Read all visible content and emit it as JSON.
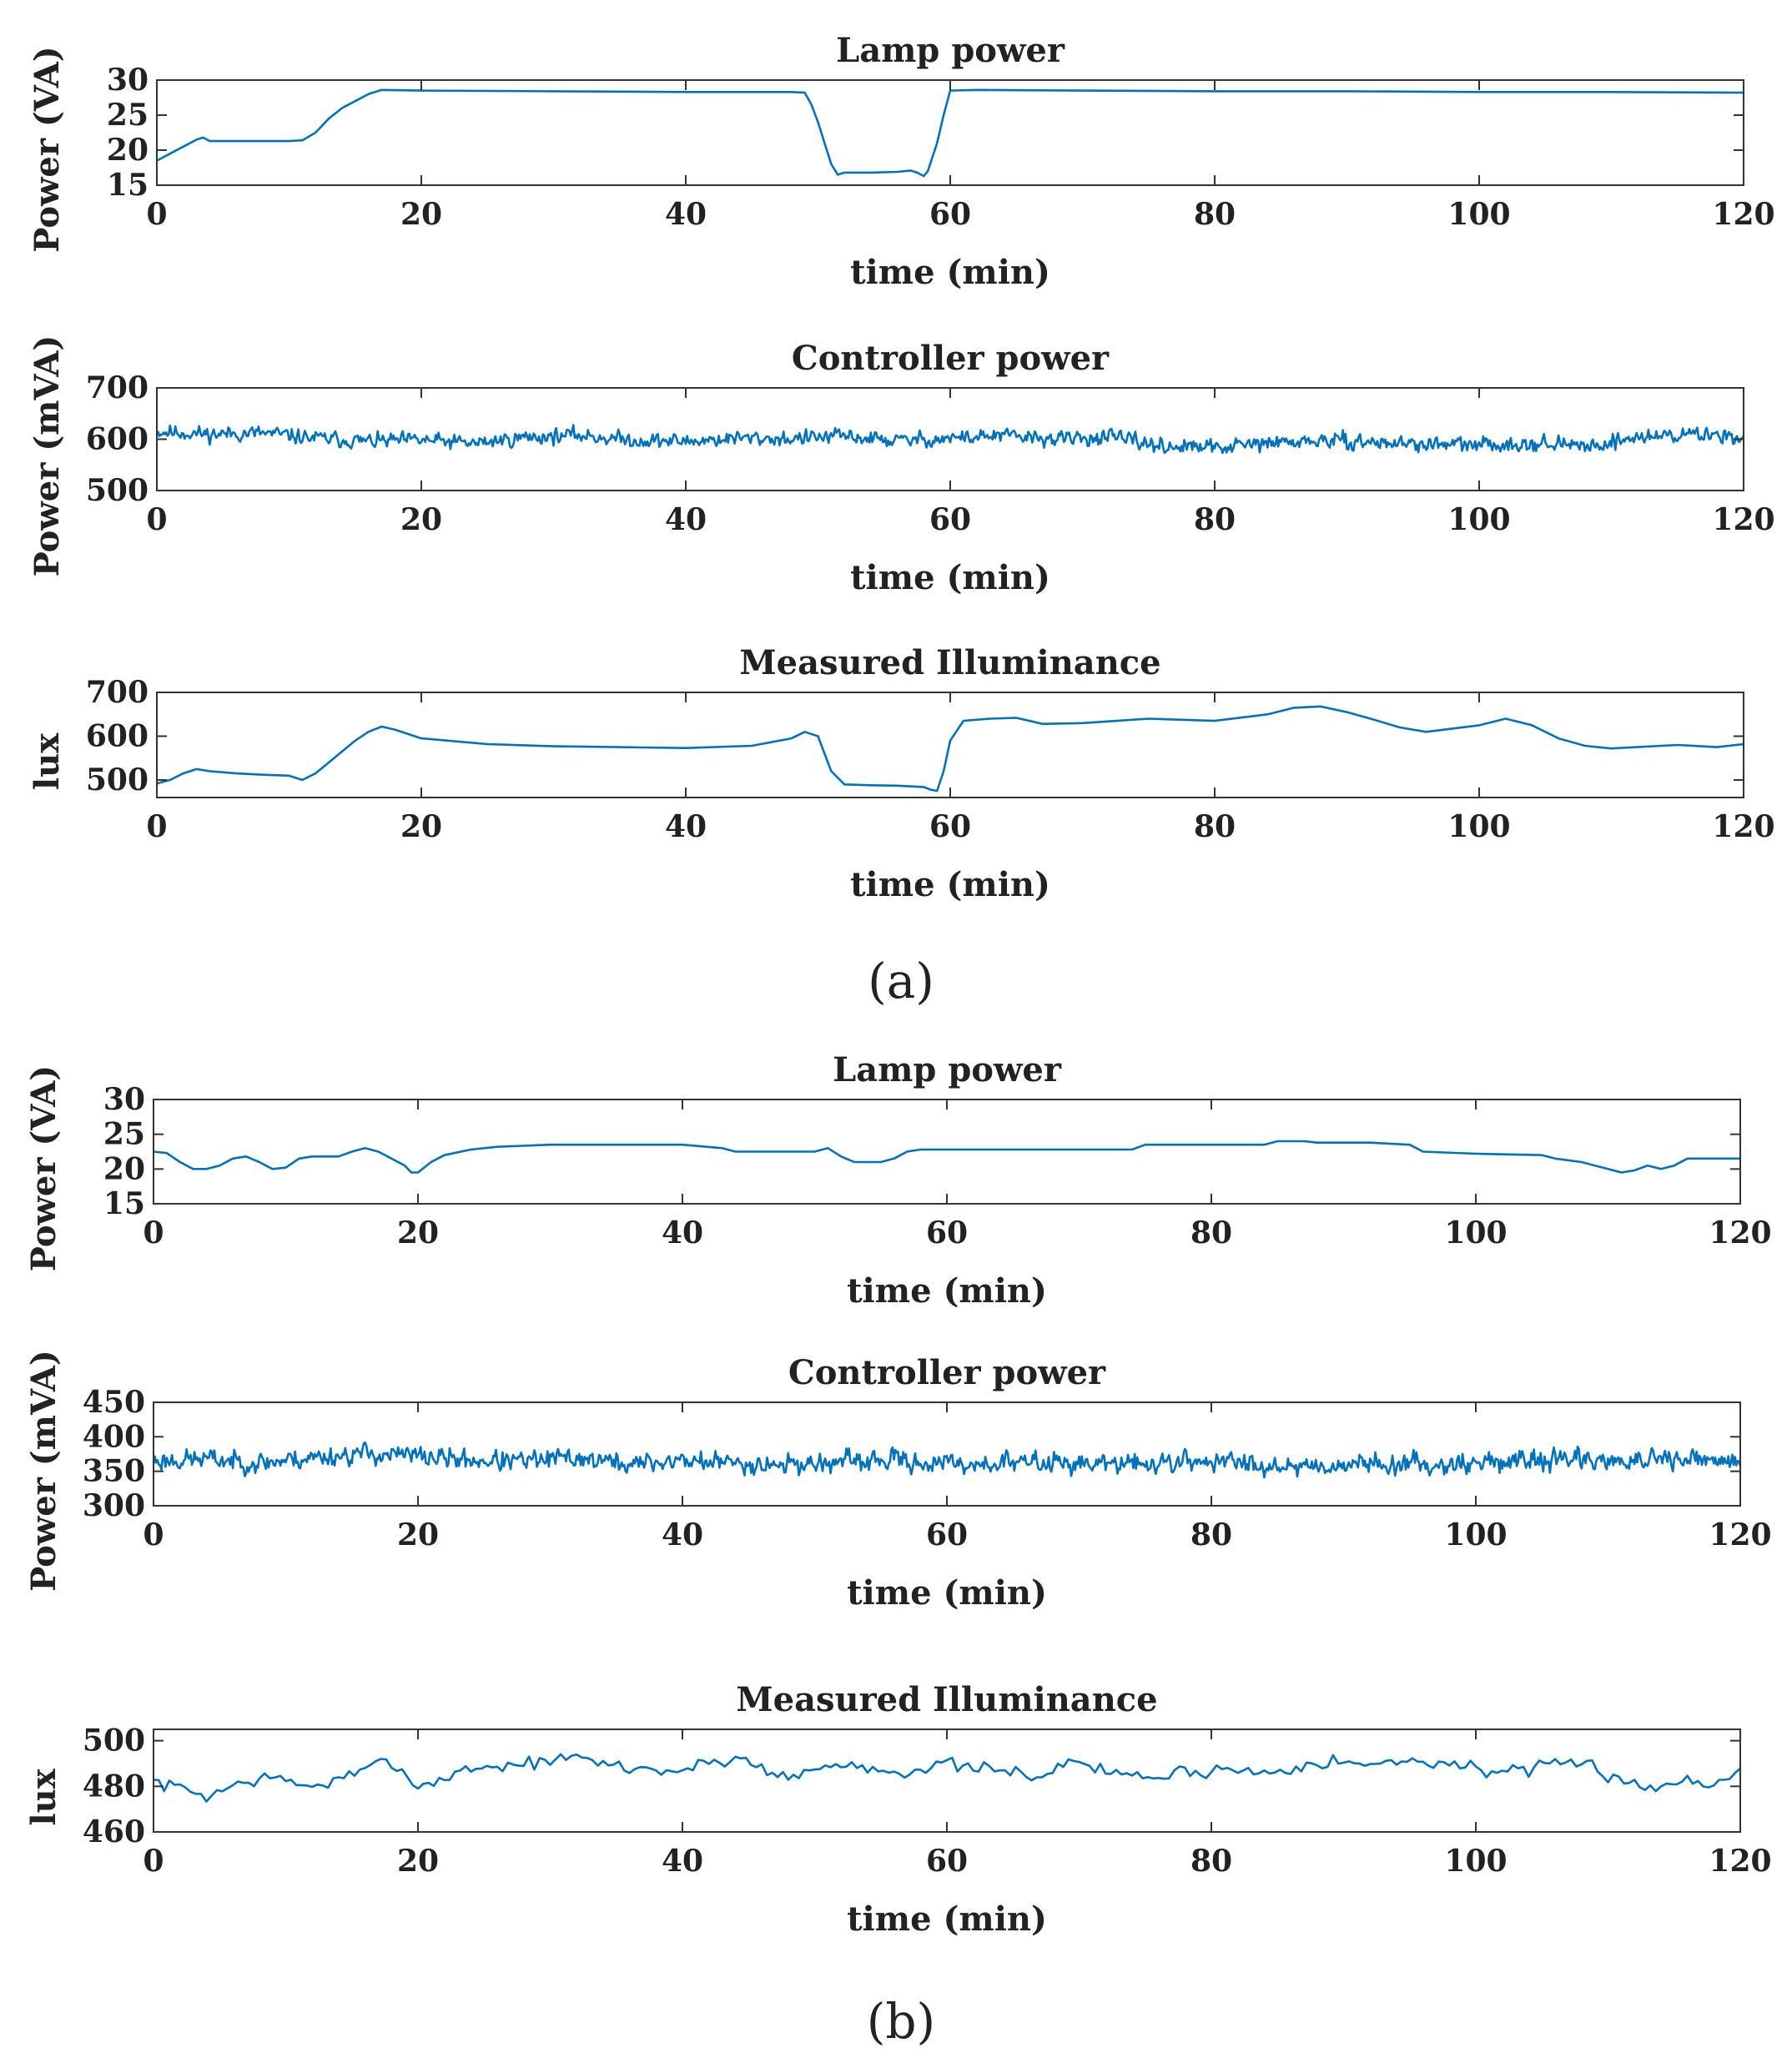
{
  "figure": {
    "panel_labels": [
      "(a)",
      "(b)"
    ],
    "line_color": "#0072BD"
  },
  "chart_data": [
    {
      "id": "a-lamp",
      "type": "line",
      "title": "Lamp power",
      "xlabel": "time (min)",
      "ylabel": "Power (VA)",
      "xlim": [
        0,
        120
      ],
      "ylim": [
        15,
        30
      ],
      "xticks": [
        0,
        20,
        40,
        60,
        80,
        100,
        120
      ],
      "yticks": [
        15,
        20,
        25,
        30
      ],
      "series": [
        {
          "name": "Lamp power",
          "x": [
            0,
            1,
            2,
            3,
            3.5,
            4,
            6,
            8,
            10,
            11,
            12,
            13,
            14,
            15,
            16,
            17,
            20,
            30,
            40,
            45,
            48,
            49,
            49.5,
            50,
            50.5,
            51,
            51.5,
            52,
            54,
            56,
            57,
            57.5,
            58,
            58.3,
            59,
            59.5,
            60,
            62,
            70,
            80,
            90,
            100,
            110,
            120
          ],
          "y": [
            18.5,
            19.5,
            20.5,
            21.5,
            21.8,
            21.3,
            21.3,
            21.3,
            21.3,
            21.4,
            22.5,
            24.5,
            26,
            27,
            28,
            28.6,
            28.5,
            28.4,
            28.3,
            28.3,
            28.3,
            28.2,
            26.5,
            24,
            21,
            18,
            16.5,
            16.8,
            16.8,
            16.9,
            17.1,
            16.8,
            16.3,
            17,
            21,
            25,
            28.5,
            28.6,
            28.5,
            28.4,
            28.4,
            28.3,
            28.3,
            28.2
          ]
        }
      ]
    },
    {
      "id": "a-controller",
      "type": "line",
      "title": "Controller power",
      "xlabel": "time (min)",
      "ylabel": "Power (mVA)",
      "xlim": [
        0,
        120
      ],
      "ylim": [
        500,
        700
      ],
      "xticks": [
        0,
        20,
        40,
        60,
        80,
        100,
        120
      ],
      "yticks": [
        500,
        600,
        700
      ],
      "series": [
        {
          "name": "Controller power",
          "x": [
            0,
            4,
            8,
            12,
            16,
            20,
            24,
            28,
            32,
            36,
            40,
            44,
            48,
            52,
            56,
            60,
            64,
            68,
            72,
            76,
            80,
            84,
            88,
            92,
            96,
            100,
            104,
            108,
            112,
            116,
            120
          ],
          "y": [
            615,
            610,
            612,
            602,
            596,
            598,
            592,
            604,
            608,
            598,
            596,
            602,
            601,
            606,
            597,
            602,
            607,
            600,
            604,
            587,
            583,
            592,
            597,
            594,
            590,
            588,
            593,
            586,
            604,
            610,
            606
          ],
          "noise_amplitude": 30,
          "samples": 1200,
          "seed": 11
        }
      ]
    },
    {
      "id": "a-illuminance",
      "type": "line",
      "title": "Measured Illuminance",
      "xlabel": "time (min)",
      "ylabel": "lux",
      "xlim": [
        0,
        120
      ],
      "ylim": [
        460,
        700
      ],
      "xticks": [
        0,
        20,
        40,
        60,
        80,
        100,
        120
      ],
      "yticks": [
        500,
        600,
        700
      ],
      "series": [
        {
          "name": "Measured Illuminance",
          "x": [
            0,
            1,
            2,
            3,
            4,
            6,
            8,
            10,
            11,
            12,
            13,
            14,
            15,
            16,
            17,
            18,
            20,
            25,
            30,
            35,
            40,
            45,
            48,
            49,
            50,
            50.5,
            51,
            52,
            54,
            56,
            58,
            58.5,
            59,
            59.5,
            60,
            61,
            63,
            65,
            67,
            70,
            75,
            80,
            84,
            86,
            88,
            90,
            92,
            94,
            96,
            100,
            102,
            104,
            106,
            108,
            110,
            115,
            118,
            120
          ],
          "y": [
            492,
            500,
            515,
            525,
            520,
            515,
            512,
            510,
            500,
            515,
            540,
            565,
            590,
            610,
            622,
            615,
            595,
            582,
            577,
            575,
            573,
            578,
            595,
            610,
            600,
            560,
            520,
            490,
            488,
            487,
            484,
            478,
            475,
            520,
            590,
            635,
            640,
            642,
            628,
            630,
            640,
            635,
            650,
            665,
            668,
            655,
            638,
            620,
            610,
            625,
            640,
            625,
            595,
            578,
            572,
            580,
            575,
            582
          ]
        }
      ]
    },
    {
      "id": "b-lamp",
      "type": "line",
      "title": "Lamp power",
      "xlabel": "time (min)",
      "ylabel": "Power (VA)",
      "xlim": [
        0,
        120
      ],
      "ylim": [
        15,
        30
      ],
      "xticks": [
        0,
        20,
        40,
        60,
        80,
        100,
        120
      ],
      "yticks": [
        15,
        20,
        25,
        30
      ],
      "series": [
        {
          "name": "Lamp power",
          "x": [
            0,
            1,
            2,
            3,
            4,
            5,
            6,
            7,
            8,
            9,
            10,
            11,
            12,
            14,
            15,
            16,
            17,
            18,
            19,
            19.5,
            20,
            21,
            22,
            24,
            26,
            30,
            40,
            43,
            44,
            50,
            51,
            52,
            53,
            55,
            56,
            57,
            58,
            60,
            70,
            74,
            75,
            84,
            85,
            87,
            88,
            92,
            95,
            96,
            100,
            105,
            106,
            108,
            109,
            110,
            111,
            112,
            113,
            114,
            115,
            116,
            120
          ],
          "y": [
            22.5,
            22.3,
            21,
            20,
            20,
            20.5,
            21.5,
            21.8,
            21,
            20,
            20.2,
            21.5,
            21.8,
            21.8,
            22.5,
            23,
            22.5,
            21.5,
            20.5,
            19.5,
            19.5,
            21,
            22,
            22.8,
            23.2,
            23.5,
            23.5,
            23,
            22.5,
            22.5,
            23,
            21.8,
            21,
            21,
            21.5,
            22.5,
            22.8,
            22.8,
            22.8,
            22.8,
            23.5,
            23.5,
            24,
            24,
            23.8,
            23.8,
            23.5,
            22.5,
            22.2,
            22,
            21.5,
            21,
            20.5,
            20,
            19.5,
            19.8,
            20.5,
            20,
            20.5,
            21.5,
            21.5
          ]
        }
      ]
    },
    {
      "id": "b-controller",
      "type": "line",
      "title": "Controller power",
      "xlabel": "time (min)",
      "ylabel": "Power (mVA)",
      "xlim": [
        0,
        120
      ],
      "ylim": [
        300,
        450
      ],
      "xticks": [
        0,
        20,
        40,
        60,
        80,
        100,
        120
      ],
      "yticks": [
        300,
        350,
        400,
        450
      ],
      "series": [
        {
          "name": "Controller power",
          "x": [
            0,
            4,
            8,
            12,
            16,
            20,
            24,
            28,
            32,
            36,
            40,
            44,
            48,
            52,
            56,
            60,
            64,
            68,
            72,
            76,
            80,
            84,
            88,
            92,
            96,
            100,
            104,
            108,
            112,
            116,
            120
          ],
          "y": [
            365,
            368,
            362,
            370,
            376,
            372,
            366,
            364,
            370,
            360,
            366,
            362,
            360,
            363,
            366,
            360,
            362,
            364,
            360,
            362,
            365,
            360,
            358,
            362,
            360,
            362,
            366,
            368,
            364,
            366,
            362
          ],
          "noise_amplitude": 30,
          "samples": 1200,
          "seed": 23
        }
      ]
    },
    {
      "id": "b-illuminance",
      "type": "line",
      "title": "Measured Illuminance",
      "xlabel": "time (min)",
      "ylabel": "lux",
      "xlim": [
        0,
        120
      ],
      "ylim": [
        460,
        505
      ],
      "xticks": [
        0,
        20,
        40,
        60,
        80,
        100,
        120
      ],
      "yticks": [
        460,
        480,
        500
      ],
      "series": [
        {
          "name": "Measured Illuminance",
          "x": [
            0,
            4,
            8,
            12,
            16,
            18,
            20,
            24,
            28,
            32,
            36,
            40,
            44,
            48,
            52,
            56,
            60,
            64,
            68,
            70,
            72,
            76,
            80,
            84,
            88,
            92,
            96,
            100,
            104,
            108,
            112,
            114,
            116,
            118,
            120
          ],
          "y": [
            482,
            476,
            484,
            480,
            486,
            492,
            480,
            488,
            490,
            492,
            488,
            487,
            493,
            484,
            490,
            487,
            489,
            486,
            486,
            492,
            486,
            484,
            488,
            486,
            492,
            489,
            492,
            488,
            486,
            490,
            482,
            478,
            484,
            480,
            488
          ],
          "noise_amplitude": 7,
          "samples": 300,
          "seed": 7
        }
      ]
    }
  ]
}
